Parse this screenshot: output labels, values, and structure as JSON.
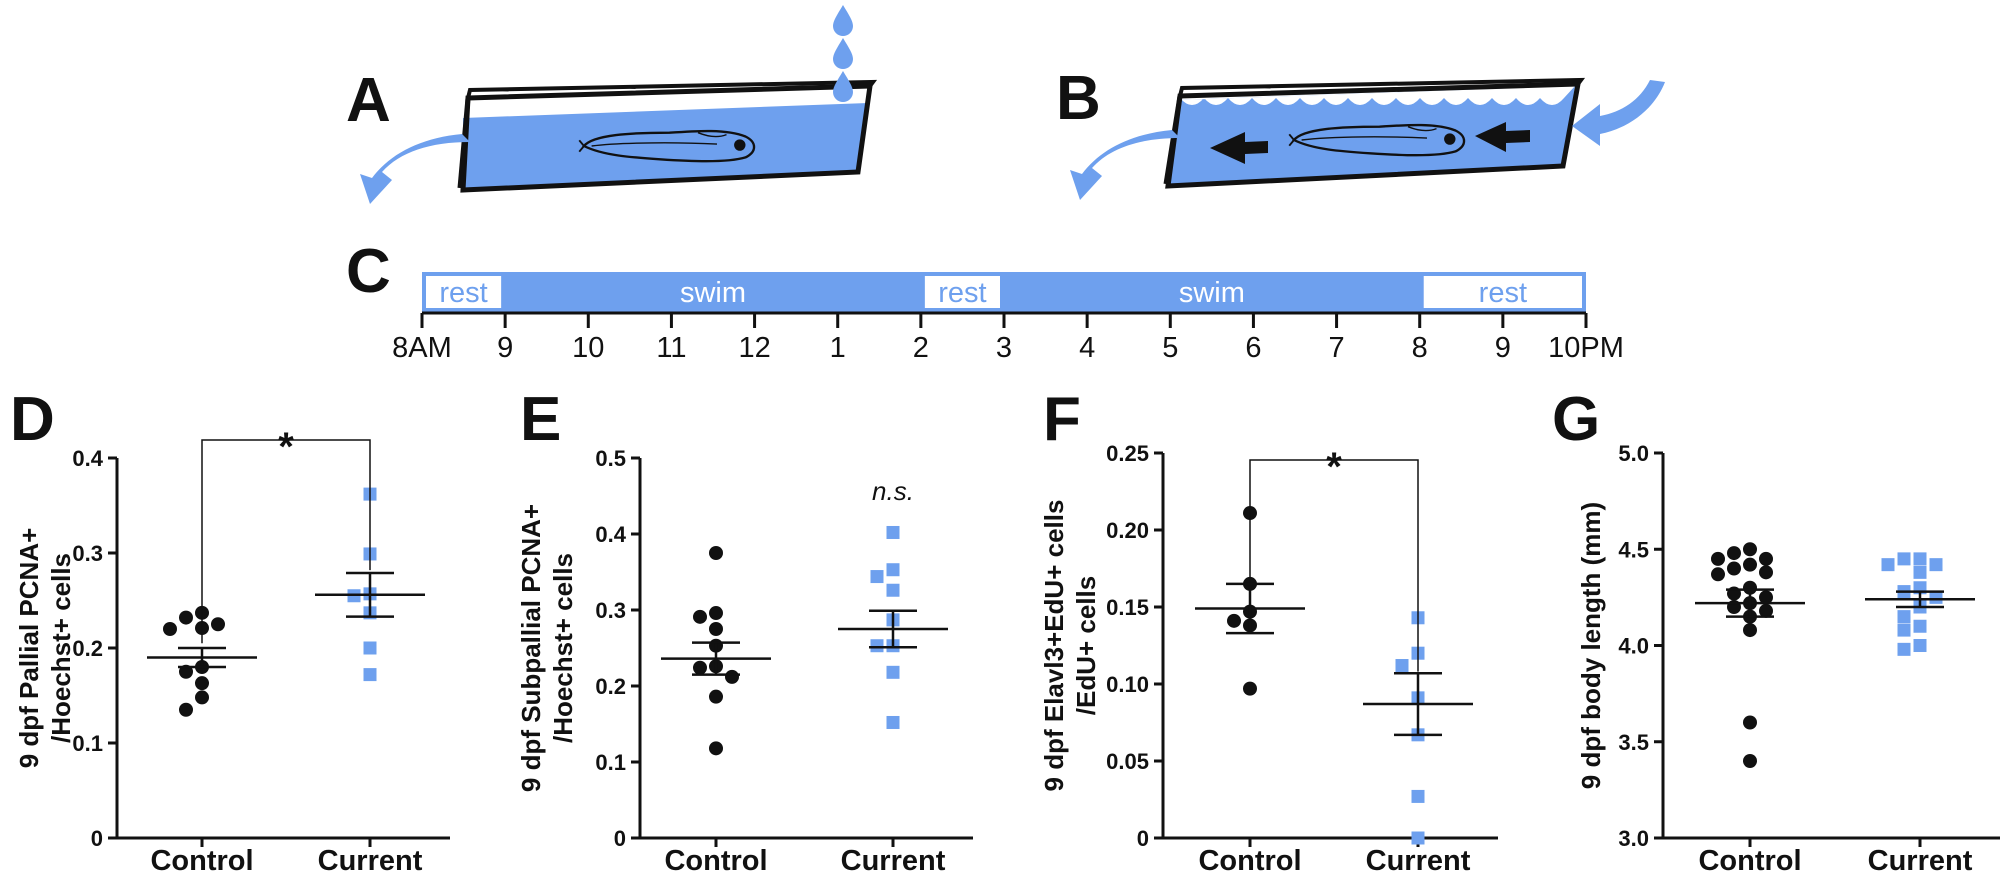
{
  "panel_labels": {
    "A": "A",
    "B": "B",
    "C": "C"
  },
  "colors": {
    "blue": "#6ea0ee",
    "dark": "#111111",
    "white": "#ffffff"
  },
  "timeline": {
    "ticks": [
      "8AM",
      "9",
      "10",
      "11",
      "12",
      "1",
      "2",
      "3",
      "4",
      "5",
      "6",
      "7",
      "8",
      "9",
      "10PM"
    ],
    "segments": [
      {
        "label": "rest",
        "start": 0,
        "end": 1
      },
      {
        "label": "swim",
        "start": 1,
        "end": 6
      },
      {
        "label": "rest",
        "start": 6,
        "end": 7
      },
      {
        "label": "swim",
        "start": 7,
        "end": 12
      },
      {
        "label": "rest",
        "start": 12,
        "end": 14
      }
    ]
  },
  "chart_data": [
    {
      "panel": "D",
      "type": "scatter",
      "ylabel_lines": [
        "9 dpf Pallial PCNA+",
        "/Hoechst+ cells"
      ],
      "ylim": [
        0,
        0.4
      ],
      "yticks": [
        "0",
        "0.1",
        "0.2",
        "0.3",
        "0.4"
      ],
      "categories": [
        "Control",
        "Current"
      ],
      "significance": "*",
      "series": [
        {
          "category": "Control",
          "marker": "circle",
          "values": [
            0.237,
            0.232,
            0.225,
            0.221,
            0.22,
            0.18,
            0.175,
            0.163,
            0.148,
            0.135
          ],
          "mean": 0.19,
          "sem": 0.01
        },
        {
          "category": "Current",
          "marker": "square",
          "values": [
            0.362,
            0.299,
            0.257,
            0.255,
            0.237,
            0.2,
            0.172
          ],
          "mean": 0.256,
          "sem": 0.023
        }
      ]
    },
    {
      "panel": "E",
      "type": "scatter",
      "ylabel_lines": [
        "9 dpf Subpallial PCNA+",
        "/Hoechst+ cells"
      ],
      "ylim": [
        0,
        0.5
      ],
      "yticks": [
        "0",
        "0.1",
        "0.2",
        "0.3",
        "0.4",
        "0.5"
      ],
      "categories": [
        "Control",
        "Current"
      ],
      "significance": "n.s.",
      "series": [
        {
          "category": "Control",
          "marker": "circle",
          "values": [
            0.375,
            0.296,
            0.291,
            0.275,
            0.253,
            0.226,
            0.224,
            0.212,
            0.186,
            0.118
          ],
          "mean": 0.236,
          "sem": 0.021
        },
        {
          "category": "Current",
          "marker": "square",
          "values": [
            0.402,
            0.353,
            0.344,
            0.326,
            0.287,
            0.253,
            0.253,
            0.218,
            0.152
          ],
          "mean": 0.275,
          "sem": 0.024
        }
      ]
    },
    {
      "panel": "F",
      "type": "scatter",
      "ylabel_lines": [
        "9 dpf Elavl3+EdU+ cells",
        "/EdU+ cells"
      ],
      "ylim": [
        0,
        0.25
      ],
      "yticks": [
        "0",
        "0.05",
        "0.10",
        "0.15",
        "0.20",
        "0.25"
      ],
      "categories": [
        "Control",
        "Current"
      ],
      "significance": "*",
      "series": [
        {
          "category": "Control",
          "marker": "circle",
          "values": [
            0.211,
            0.165,
            0.147,
            0.141,
            0.138,
            0.097
          ],
          "mean": 0.149,
          "sem": 0.016
        },
        {
          "category": "Current",
          "marker": "square",
          "values": [
            0.143,
            0.12,
            0.112,
            0.091,
            0.067,
            0.027,
            0.0
          ],
          "mean": 0.087,
          "sem": 0.02
        }
      ]
    },
    {
      "panel": "G",
      "type": "scatter",
      "ylabel_lines": [
        "9 dpf body length (mm)"
      ],
      "ylim": [
        3.0,
        5.0
      ],
      "yticks": [
        "3.0",
        "3.5",
        "4.0",
        "4.5",
        "5.0"
      ],
      "categories": [
        "Control",
        "Current"
      ],
      "significance": "",
      "series": [
        {
          "category": "Control",
          "marker": "circle",
          "values": [
            4.5,
            4.48,
            4.45,
            4.45,
            4.42,
            4.4,
            4.38,
            4.37,
            4.3,
            4.27,
            4.25,
            4.22,
            4.2,
            4.18,
            4.15,
            4.08,
            3.6,
            3.4
          ],
          "mean": 4.22,
          "sem": 0.07
        },
        {
          "category": "Current",
          "marker": "square",
          "values": [
            4.45,
            4.45,
            4.42,
            4.42,
            4.38,
            4.3,
            4.28,
            4.25,
            4.2,
            4.15,
            4.1,
            4.08,
            4.0,
            3.98
          ],
          "mean": 4.24,
          "sem": 0.04
        }
      ]
    }
  ]
}
